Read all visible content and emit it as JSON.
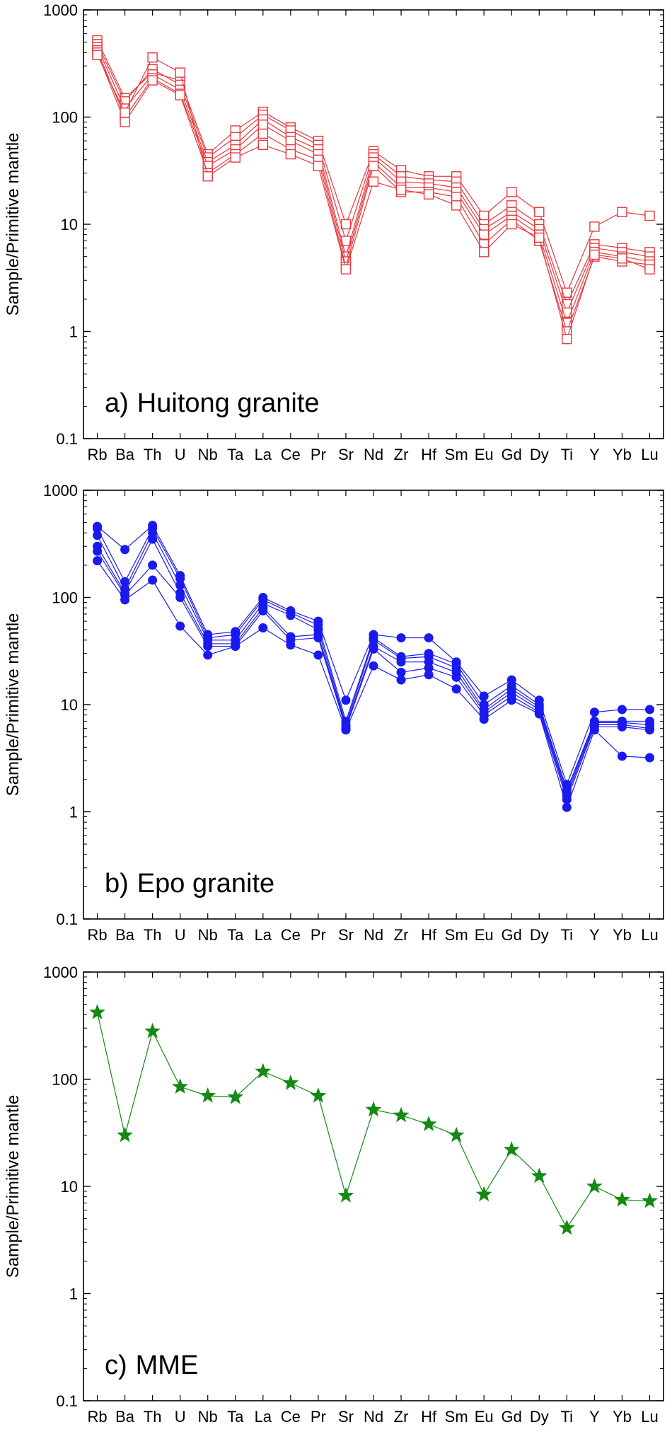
{
  "chart_data": [
    {
      "type": "line",
      "panel": "a)",
      "title": "Huitong granite",
      "ylabel": "Sample/Primitive mantle",
      "xlabel": "",
      "yscale": "log",
      "ylim": [
        0.1,
        1000
      ],
      "yticks": [
        "0.1",
        "1",
        "10",
        "100",
        "1000"
      ],
      "grid": false,
      "color": "#e8383d",
      "marker": "open-square",
      "categories": [
        "Rb",
        "Ba",
        "Th",
        "U",
        "Nb",
        "Ta",
        "La",
        "Ce",
        "Pr",
        "Sr",
        "Nd",
        "Zr",
        "Hf",
        "Sm",
        "Eu",
        "Gd",
        "Dy",
        "Ti",
        "Y",
        "Yb",
        "Lu"
      ],
      "series": [
        {
          "values": [
            520,
            150,
            260,
            220,
            45,
            75,
            112,
            80,
            60,
            10,
            48,
            32,
            28,
            28,
            12,
            20,
            13,
            2.3,
            9.5,
            13,
            12
          ]
        },
        {
          "values": [
            480,
            140,
            280,
            200,
            42,
            65,
            105,
            75,
            55,
            7,
            45,
            28,
            26,
            25,
            10,
            15,
            10,
            1.8,
            6.5,
            6,
            5.5
          ]
        },
        {
          "values": [
            450,
            120,
            250,
            180,
            38,
            55,
            95,
            65,
            50,
            5,
            42,
            25,
            24,
            22,
            9,
            13,
            9,
            1.5,
            6,
            5.5,
            5
          ]
        },
        {
          "values": [
            420,
            100,
            230,
            165,
            35,
            50,
            85,
            60,
            45,
            4.5,
            38,
            22,
            22,
            20,
            8,
            12,
            8,
            1.2,
            5.5,
            5,
            4.5
          ]
        },
        {
          "values": [
            400,
            90,
            220,
            160,
            30,
            45,
            70,
            50,
            40,
            4,
            35,
            20,
            20,
            18,
            6.5,
            11,
            7,
            1,
            5,
            4.5,
            4.2
          ]
        },
        {
          "values": [
            380,
            110,
            360,
            260,
            28,
            42,
            55,
            45,
            35,
            3.8,
            25,
            21,
            19,
            15,
            5.5,
            10,
            7.5,
            0.85,
            5.2,
            4.8,
            3.8
          ]
        }
      ]
    },
    {
      "type": "line",
      "panel": "b)",
      "title": "Epo granite",
      "ylabel": "Sample/Primitive mantle",
      "xlabel": "",
      "yscale": "log",
      "ylim": [
        0.1,
        1000
      ],
      "yticks": [
        "0.1",
        "1",
        "10",
        "100",
        "1000"
      ],
      "grid": false,
      "color": "#1a1aee",
      "marker": "filled-circle",
      "categories": [
        "Rb",
        "Ba",
        "Th",
        "U",
        "Nb",
        "Ta",
        "La",
        "Ce",
        "Pr",
        "Sr",
        "Nd",
        "Zr",
        "Hf",
        "Sm",
        "Eu",
        "Gd",
        "Dy",
        "Ti",
        "Y",
        "Yb",
        "Lu"
      ],
      "series": [
        {
          "values": [
            460,
            280,
            470,
            160,
            45,
            48,
            100,
            75,
            60,
            11,
            45,
            42,
            42,
            25,
            12,
            17,
            11,
            1.8,
            8.5,
            9,
            9
          ]
        },
        {
          "values": [
            440,
            140,
            440,
            150,
            42,
            45,
            95,
            72,
            55,
            7,
            42,
            28,
            30,
            24,
            10,
            15,
            10,
            1.6,
            7,
            7,
            7
          ]
        },
        {
          "values": [
            380,
            120,
            400,
            130,
            40,
            40,
            88,
            68,
            50,
            6.5,
            40,
            27,
            28,
            22,
            9,
            14,
            9.5,
            1.5,
            6.8,
            6.8,
            6.5
          ]
        },
        {
          "values": [
            300,
            110,
            350,
            110,
            37,
            37,
            80,
            43,
            45,
            6.2,
            35,
            25,
            25,
            20,
            8.5,
            13,
            9,
            1.4,
            6.5,
            6.5,
            6
          ]
        },
        {
          "values": [
            270,
            105,
            200,
            100,
            35,
            35,
            75,
            40,
            42,
            6,
            33,
            20,
            22,
            18,
            8,
            12,
            8.5,
            1.3,
            6.2,
            6.2,
            5.8
          ]
        },
        {
          "values": [
            220,
            95,
            145,
            54,
            29,
            35,
            52,
            36,
            29,
            5.8,
            23,
            17,
            19,
            14,
            7.3,
            11,
            8.2,
            1.1,
            5.8,
            3.3,
            3.2
          ]
        }
      ]
    },
    {
      "type": "line",
      "panel": "c)",
      "title": "MME",
      "ylabel": "Sample/Primitive mantle",
      "xlabel": "",
      "yscale": "log",
      "ylim": [
        0.1,
        1000
      ],
      "yticks": [
        "0.1",
        "1",
        "10",
        "100",
        "1000"
      ],
      "grid": false,
      "color": "#138a13",
      "marker": "filled-star",
      "categories": [
        "Rb",
        "Ba",
        "Th",
        "U",
        "Nb",
        "Ta",
        "La",
        "Ce",
        "Pr",
        "Sr",
        "Nd",
        "Zr",
        "Hf",
        "Sm",
        "Eu",
        "Gd",
        "Dy",
        "Ti",
        "Y",
        "Yb",
        "Lu"
      ],
      "series": [
        {
          "values": [
            420,
            30,
            280,
            85,
            70,
            68,
            118,
            92,
            70,
            8.2,
            52,
            46,
            38,
            30,
            8.4,
            22,
            12.5,
            4.1,
            10,
            7.5,
            7.3
          ]
        }
      ]
    }
  ]
}
